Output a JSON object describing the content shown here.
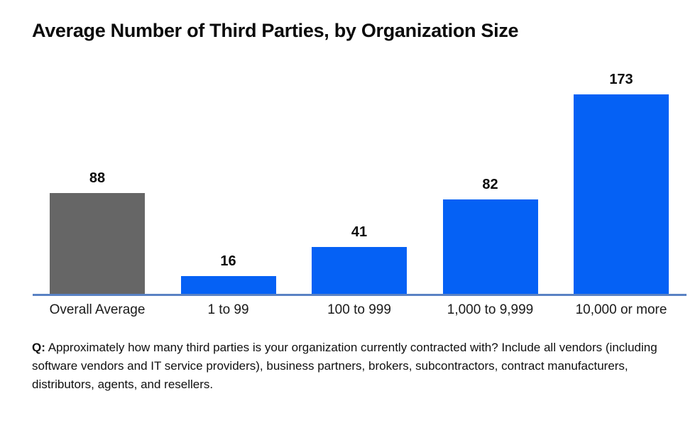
{
  "chart_data": {
    "type": "bar",
    "title": "Average Number of Third Parties, by Organization Size",
    "categories": [
      "Overall Average",
      "1 to 99",
      "100 to 999",
      "1,000 to 9,999",
      "10,000 or more"
    ],
    "values": [
      88,
      16,
      41,
      82,
      173
    ],
    "bar_colors": [
      "#666666",
      "#0561f5",
      "#0561f5",
      "#0561f5",
      "#0561f5"
    ],
    "xlabel": "",
    "ylabel": "",
    "ylim": [
      0,
      180
    ],
    "grid": false,
    "legend": false,
    "value_labels_shown": true,
    "axis_line_color": "#5a82c4",
    "accent_blue": "#0561f5",
    "overall_average_gray": "#666666"
  },
  "footnote": {
    "label": "Q:",
    "text": "Approximately how many third parties is your organization currently contracted with? Include all vendors (including software vendors and IT service providers), business partners, brokers, subcontractors, contract manufacturers, distributors, agents, and resellers."
  }
}
